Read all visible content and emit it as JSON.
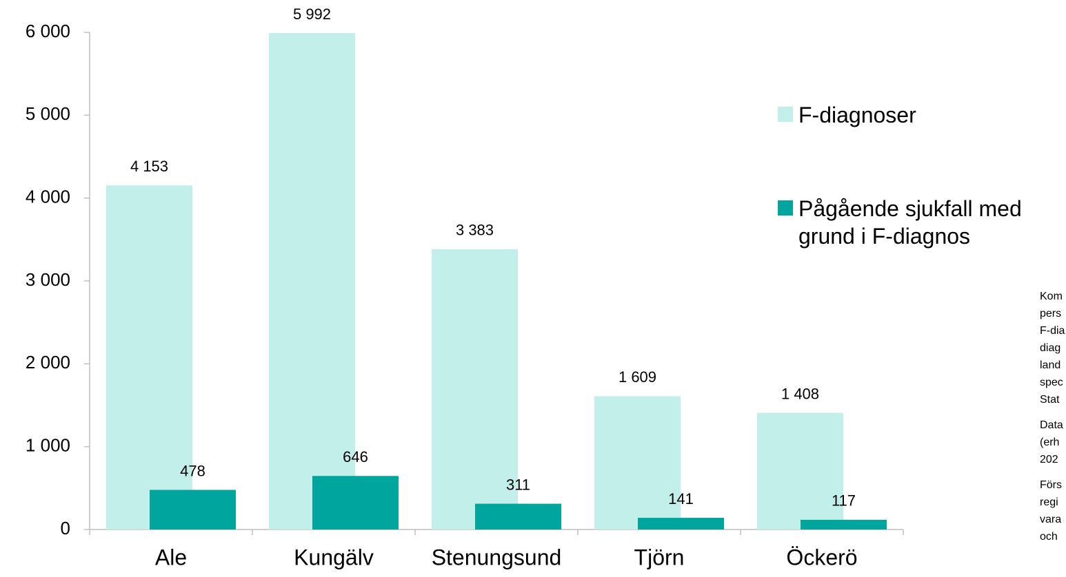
{
  "chart_data": {
    "type": "bar",
    "categories": [
      "Ale",
      "Kungälv",
      "Stenungsund",
      "Tjörn",
      "Öckerö"
    ],
    "series": [
      {
        "name": "F-diagnoser",
        "color": "#c2efe9",
        "values": [
          4153,
          5992,
          3383,
          1609,
          1408
        ],
        "value_labels": [
          "4 153",
          "5 992",
          "3 383",
          "1 609",
          "1 408"
        ]
      },
      {
        "name": "Pågående sjukfall med grund i F-diagnos",
        "color": "#00a59e",
        "values": [
          478,
          646,
          311,
          141,
          117
        ]
      }
    ],
    "ylim": [
      0,
      6000
    ],
    "yticks": [
      0,
      {
        "value": 1000,
        "label": "1 000"
      },
      {
        "value": 2000,
        "label": "2 000"
      },
      {
        "value": 3000,
        "label": "3 000"
      },
      {
        "value": 4000,
        "label": "4 000"
      },
      {
        "value": 5000,
        "label": "5 000"
      },
      {
        "value": 6000,
        "label": "6 000"
      }
    ],
    "legend": "right",
    "notes": [
      [
        "Kom",
        "pers",
        "F-dia",
        "diag",
        "land",
        "spec",
        "Stat"
      ],
      [
        "Data",
        "(erh",
        "202"
      ],
      [
        "Förs",
        "regi",
        "vara",
        "och"
      ]
    ]
  }
}
